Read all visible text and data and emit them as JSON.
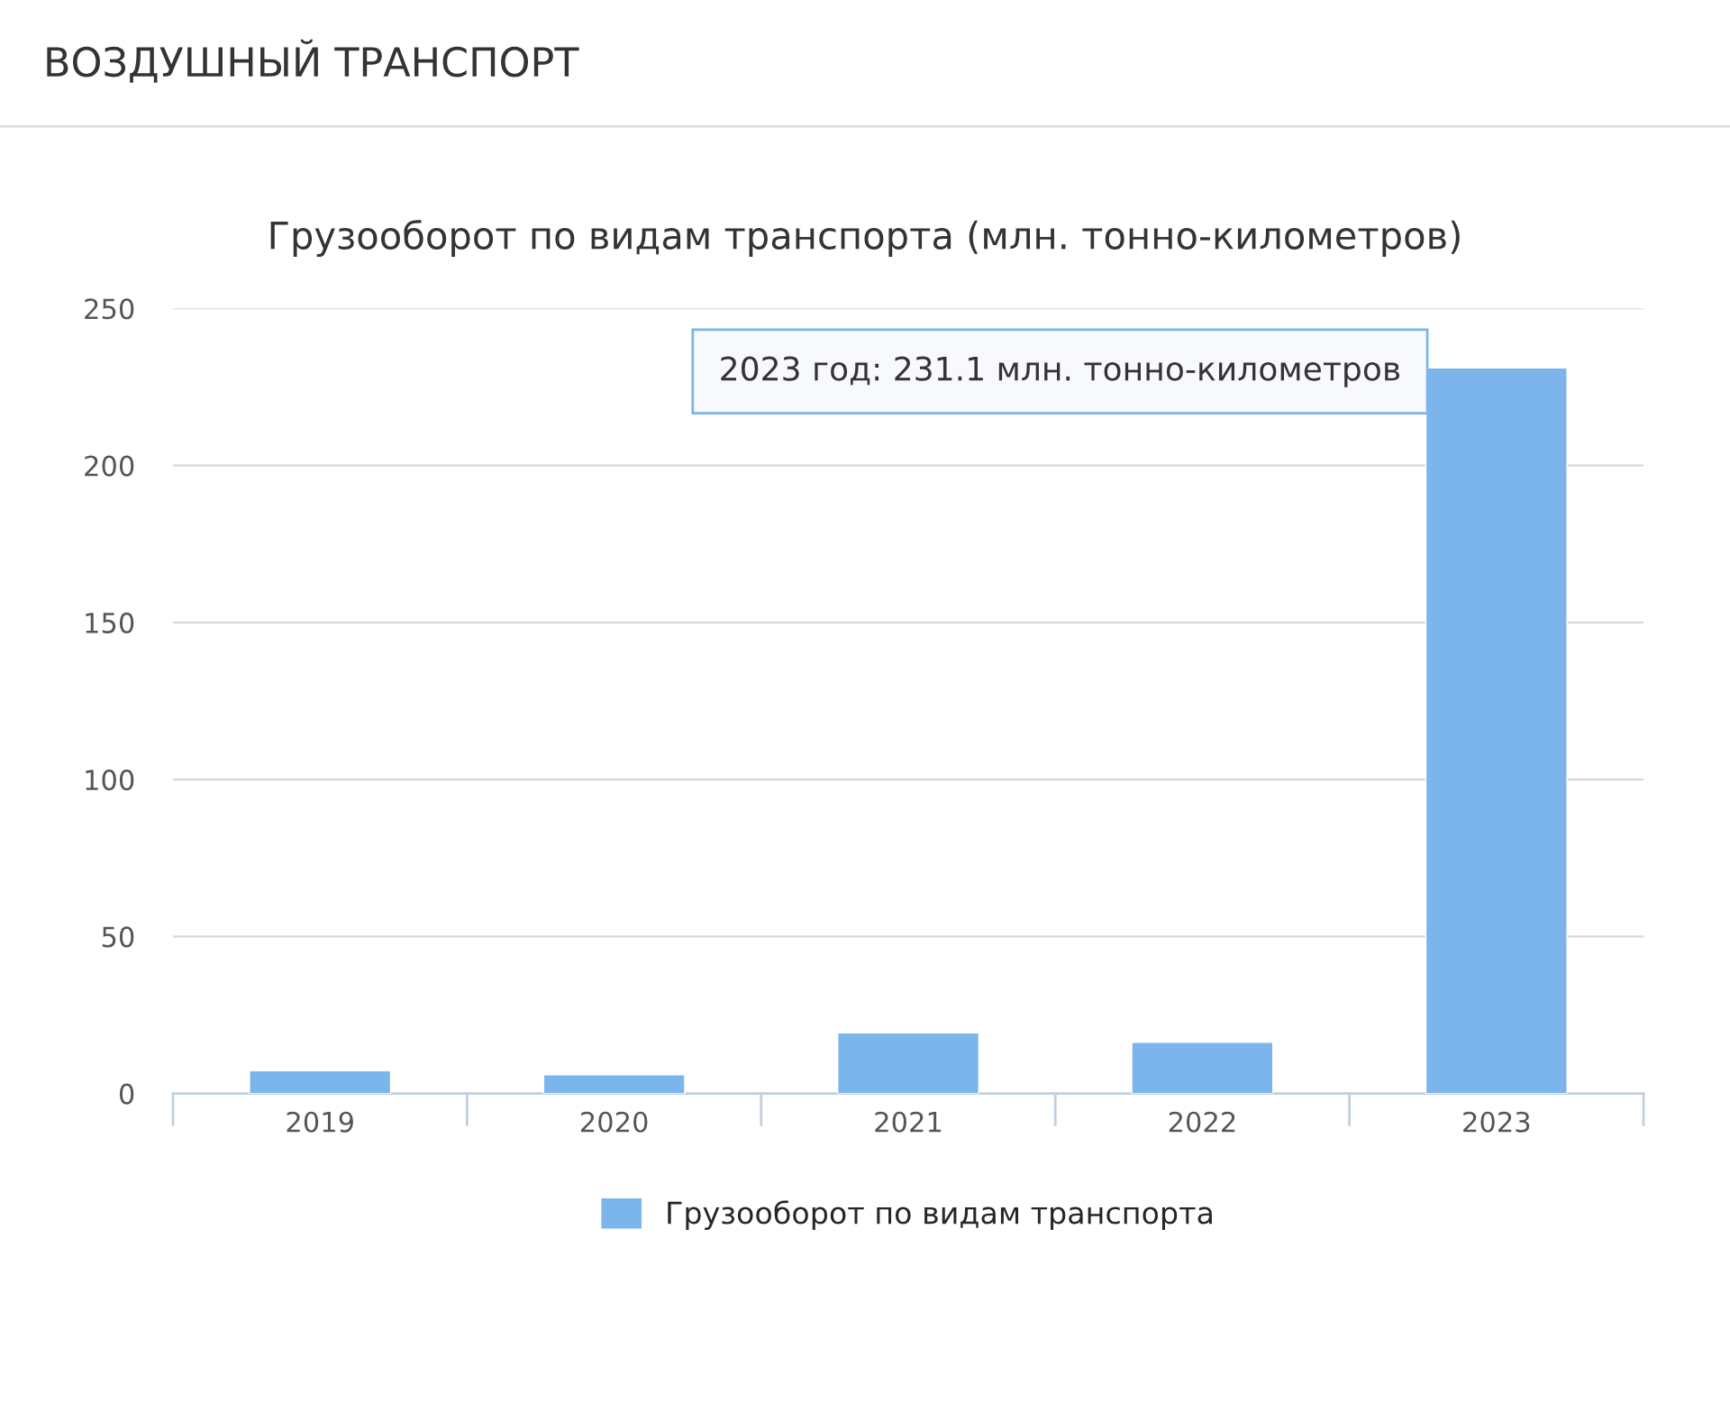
{
  "chart_data": {
    "type": "bar",
    "title": "ВОЗДУШНЫЙ ТРАНСПОРТ",
    "subtitle": "Грузооборот по видам транспорта (млн. тонно-километров)",
    "categories": [
      "2019",
      "2020",
      "2021",
      "2022",
      "2023"
    ],
    "series": [
      {
        "name": "Грузооборот по видам транспорта",
        "color": "#7cb5ec",
        "values": [
          7.3,
          6.0,
          19.3,
          16.3,
          231.1
        ]
      }
    ],
    "ylim": [
      0,
      250
    ],
    "yticks": [
      0,
      50,
      100,
      150,
      200,
      250
    ],
    "grid": "y",
    "legend": "bottom",
    "annotations": [
      "2023 год: 231.1 млн. тонно-километров"
    ]
  }
}
